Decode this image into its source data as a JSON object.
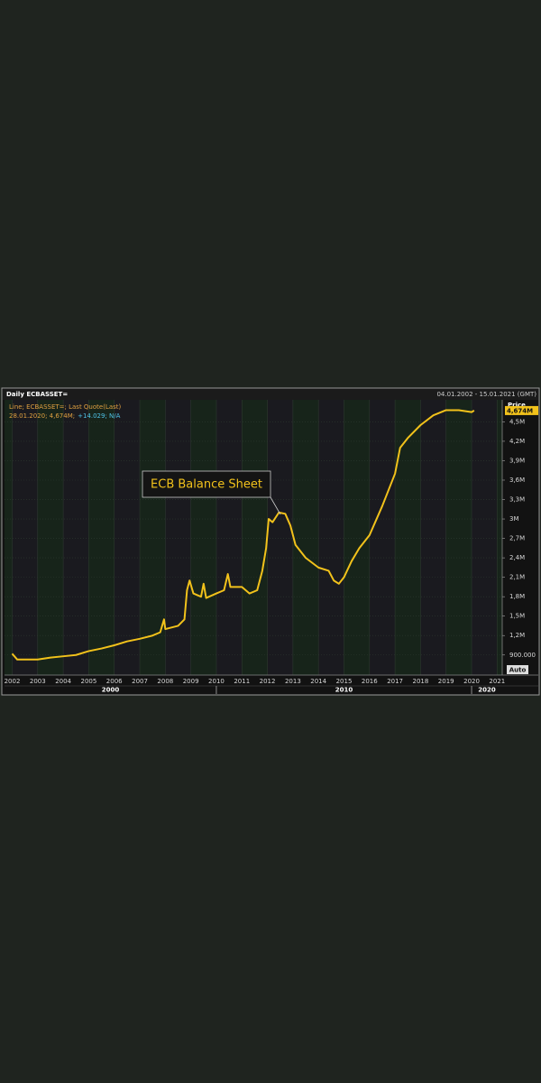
{
  "chart_data": {
    "type": "line",
    "header_title": "Daily ECBASSET=",
    "date_range": "04.01.2002 - 15.01.2021 (GMT)",
    "legend_line": "Line; ECBASSET=; Last Quote(Last)",
    "quote_date": "28.01.2020; 4,674M;",
    "quote_change": "+14.029; N/A",
    "axis_title": "Price",
    "auto_button": "Auto",
    "annotation": "ECB Balance Sheet",
    "last_price": {
      "value": 4674000,
      "label": "4,674M"
    },
    "color": "#f2c21b",
    "grid": true,
    "x": [
      2002.0,
      2002.2,
      2003.0,
      2003.5,
      2004.0,
      2004.5,
      2005.0,
      2005.5,
      2006.0,
      2006.5,
      2007.0,
      2007.5,
      2007.8,
      2007.95,
      2008.0,
      2008.5,
      2008.75,
      2008.85,
      2008.95,
      2009.1,
      2009.4,
      2009.5,
      2009.6,
      2010.0,
      2010.3,
      2010.45,
      2010.55,
      2010.8,
      2011.0,
      2011.3,
      2011.6,
      2011.8,
      2011.95,
      2012.05,
      2012.2,
      2012.45,
      2012.7,
      2012.9,
      2013.1,
      2013.5,
      2014.0,
      2014.4,
      2014.6,
      2014.8,
      2015.0,
      2015.3,
      2015.6,
      2016.0,
      2016.5,
      2017.0,
      2017.2,
      2017.5,
      2018.0,
      2018.5,
      2019.0,
      2019.5,
      2020.0,
      2020.1
    ],
    "values": [
      920000,
      830000,
      830000,
      860000,
      880000,
      900000,
      960000,
      1000000,
      1050000,
      1110000,
      1150000,
      1200000,
      1250000,
      1450000,
      1300000,
      1350000,
      1450000,
      1900000,
      2050000,
      1850000,
      1800000,
      2000000,
      1780000,
      1850000,
      1900000,
      2150000,
      1950000,
      1950000,
      1950000,
      1850000,
      1900000,
      2200000,
      2550000,
      3000000,
      2950000,
      3100000,
      3080000,
      2900000,
      2600000,
      2400000,
      2250000,
      2200000,
      2050000,
      2000000,
      2100000,
      2350000,
      2550000,
      2750000,
      3200000,
      3700000,
      4100000,
      4250000,
      4450000,
      4600000,
      4680000,
      4680000,
      4650000,
      4674000
    ],
    "xlim": [
      2001.7,
      2021.2
    ],
    "xticks": [
      2002,
      2003,
      2004,
      2005,
      2006,
      2007,
      2008,
      2009,
      2010,
      2011,
      2012,
      2013,
      2014,
      2015,
      2016,
      2017,
      2018,
      2019,
      2020,
      2021
    ],
    "x_groups": [
      {
        "value": 2000,
        "label": "2000"
      },
      {
        "value": 2010,
        "label": "2010"
      },
      {
        "value": 2020,
        "label": "2020"
      }
    ],
    "ylim": [
      590000,
      4840000
    ],
    "yticks": [
      {
        "value": 900000,
        "label": "900.000"
      },
      {
        "value": 1200000,
        "label": "1,2M"
      },
      {
        "value": 1500000,
        "label": "1,5M"
      },
      {
        "value": 1800000,
        "label": "1,8M"
      },
      {
        "value": 2100000,
        "label": "2,1M"
      },
      {
        "value": 2400000,
        "label": "2,4M"
      },
      {
        "value": 2700000,
        "label": "2,7M"
      },
      {
        "value": 3000000,
        "label": "3M"
      },
      {
        "value": 3300000,
        "label": "3,3M"
      },
      {
        "value": 3600000,
        "label": "3,6M"
      },
      {
        "value": 3900000,
        "label": "3,9M"
      },
      {
        "value": 4200000,
        "label": "4,2M"
      },
      {
        "value": 4500000,
        "label": "4,5M"
      }
    ]
  }
}
